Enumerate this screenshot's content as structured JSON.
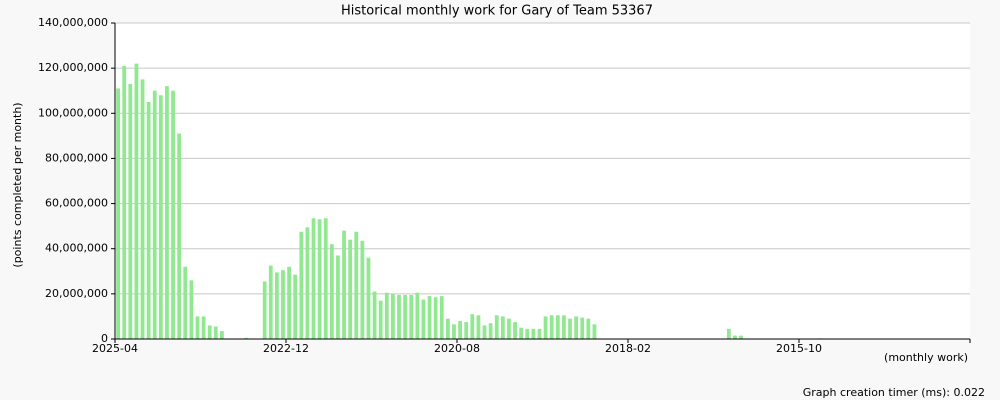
{
  "chart_data": {
    "type": "bar",
    "title": "Historical monthly work for Gary of Team 53367",
    "y_label": "(points completed per month)",
    "x_label": "(monthly work)",
    "footer": "Graph creation timer (ms): 0.022",
    "color": "#90e890",
    "grid": true,
    "ylim": [
      0,
      140000000
    ],
    "yticks": [
      0,
      {
        "value": 20000000,
        "label": "20,000,000"
      },
      {
        "value": 40000000,
        "label": "40,000,000"
      },
      {
        "value": 60000000,
        "label": "60,000,000"
      },
      {
        "value": 80000000,
        "label": "80,000,000"
      },
      {
        "value": 100000000,
        "label": "100,000,000"
      },
      {
        "value": 120000000,
        "label": "120,000,000"
      },
      {
        "value": 140000000,
        "label": "140,000,000"
      }
    ],
    "categories": [
      "2025-04",
      null,
      null,
      null,
      null,
      null,
      null,
      null,
      null,
      null,
      null,
      null,
      null,
      null,
      null,
      null,
      null,
      null,
      null,
      null,
      null,
      null,
      null,
      null,
      null,
      null,
      null,
      null,
      "2022-12",
      null,
      null,
      null,
      null,
      null,
      null,
      null,
      null,
      null,
      null,
      null,
      null,
      null,
      null,
      null,
      null,
      null,
      null,
      null,
      null,
      null,
      null,
      null,
      null,
      null,
      null,
      null,
      "2020-08",
      null,
      null,
      null,
      null,
      null,
      null,
      null,
      null,
      null,
      null,
      null,
      null,
      null,
      null,
      null,
      null,
      null,
      null,
      null,
      null,
      null,
      null,
      null,
      null,
      null,
      null,
      null,
      "2018-02",
      null,
      null,
      null,
      null,
      null,
      null,
      null,
      null,
      null,
      null,
      null,
      null,
      null,
      null,
      null,
      null,
      null,
      null,
      null,
      null,
      null,
      null,
      null,
      null,
      null,
      null,
      null,
      "2015-10",
      null,
      null,
      null,
      null,
      null,
      null,
      null,
      null,
      null,
      null,
      null,
      null,
      null,
      null,
      null,
      null,
      null,
      null,
      null,
      null,
      null,
      null,
      null,
      null,
      null,
      null,
      null
    ],
    "values": [
      111000000,
      121000000,
      113000000,
      122000000,
      115000000,
      105000000,
      110000000,
      108000000,
      112000000,
      110000000,
      91000000,
      32000000,
      26000000,
      10000000,
      10000000,
      6000000,
      5500000,
      3500000,
      0,
      0,
      0,
      500000,
      0,
      0,
      25500000,
      32500000,
      29500000,
      30500000,
      32000000,
      28500000,
      47500000,
      49500000,
      53500000,
      53000000,
      53500000,
      42000000,
      37000000,
      48000000,
      44000000,
      47500000,
      43500000,
      36000000,
      21000000,
      17000000,
      20500000,
      20000000,
      19500000,
      19500000,
      19500000,
      20500000,
      17500000,
      19000000,
      18500000,
      19000000,
      9000000,
      6500000,
      8000000,
      7500000,
      11000000,
      10500000,
      6000000,
      7000000,
      10500000,
      10000000,
      9000000,
      7500000,
      5000000,
      4500000,
      4500000,
      4500000,
      10000000,
      10500000,
      10500000,
      10500000,
      9000000,
      10000000,
      9500000,
      9000000,
      6500000,
      0,
      0,
      0,
      0,
      0,
      0,
      0,
      0,
      0,
      0,
      0,
      0,
      0,
      0,
      0,
      0,
      0,
      0,
      0,
      0,
      0,
      4500000,
      1500000,
      1500000,
      0,
      0,
      0,
      0,
      0,
      0,
      0,
      0,
      0,
      0,
      0,
      0,
      300000,
      0,
      0,
      0,
      0,
      0,
      0,
      0,
      0,
      0,
      0,
      0,
      0,
      0,
      0,
      0,
      0,
      0,
      0,
      0,
      0,
      0,
      0,
      0,
      0
    ]
  }
}
